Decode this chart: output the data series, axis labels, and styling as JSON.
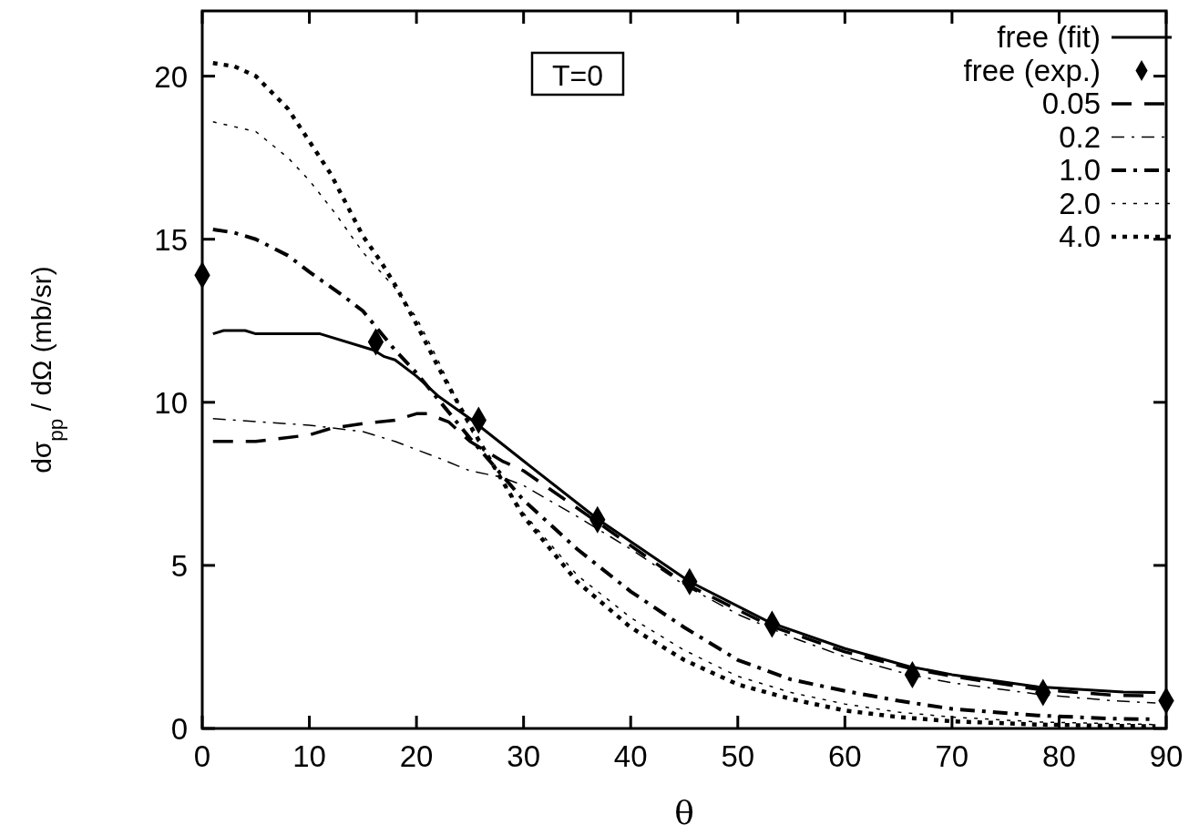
{
  "chart_data": {
    "type": "line",
    "xlabel": "θ",
    "ylabel": "dσ$_{pp}$ / dΩ (mb/sr)",
    "annotations": [
      "T=0"
    ],
    "xlim": [
      0,
      90
    ],
    "ylim": [
      0,
      22
    ],
    "xticks": [
      0,
      10,
      20,
      30,
      40,
      50,
      60,
      70,
      80,
      90
    ],
    "yticks": [
      0,
      5,
      10,
      15,
      20
    ],
    "grid": false,
    "legend": "top right",
    "series": [
      {
        "name": "free (fit)",
        "color": "#000000",
        "line_style": "solid",
        "x": [
          1,
          2,
          4,
          5,
          11,
          16,
          17,
          18,
          20,
          22,
          25,
          30,
          37,
          45.5,
          53,
          60,
          66,
          70,
          78,
          86,
          89
        ],
        "values": [
          12.1,
          12.2,
          12.2,
          12.1,
          12.1,
          11.6,
          11.4,
          11.3,
          10.8,
          10.2,
          9.5,
          8.2,
          6.4,
          4.5,
          3.25,
          2.45,
          1.9,
          1.65,
          1.28,
          1.12,
          1.1
        ]
      },
      {
        "name": "free (exp.)",
        "type": "scatter",
        "marker": "diamond",
        "color": "#000000",
        "x": [
          0,
          16.2,
          25.8,
          36.9,
          45.5,
          53.2,
          66.3,
          78.5,
          90
        ],
        "values": [
          13.9,
          11.85,
          9.45,
          6.4,
          4.5,
          3.2,
          1.65,
          1.1,
          0.85
        ]
      },
      {
        "name": "0.05",
        "color": "#000000",
        "line_style": "dashed",
        "x": [
          1,
          5,
          10,
          12,
          15,
          18,
          20,
          21,
          23,
          25,
          28,
          30,
          37,
          45,
          53,
          60,
          66,
          70,
          78,
          85,
          89
        ],
        "values": [
          8.8,
          8.8,
          9.0,
          9.2,
          9.35,
          9.45,
          9.65,
          9.65,
          9.4,
          8.8,
          8.2,
          7.9,
          6.3,
          4.45,
          3.15,
          2.35,
          1.85,
          1.6,
          1.2,
          1.02,
          1.0
        ]
      },
      {
        "name": "0.2",
        "color": "#000000",
        "line_style": "dashdot",
        "x": [
          1,
          10,
          15,
          18,
          22,
          25,
          28,
          30,
          35,
          40,
          45,
          50,
          55,
          60,
          66,
          70,
          78,
          85,
          89
        ],
        "values": [
          9.5,
          9.3,
          9.1,
          8.8,
          8.3,
          7.9,
          7.7,
          7.45,
          6.5,
          5.5,
          4.4,
          3.5,
          2.8,
          2.2,
          1.65,
          1.4,
          1.05,
          0.85,
          0.78
        ]
      },
      {
        "name": "1.0",
        "color": "#000000",
        "line_style": "dashdot",
        "x": [
          1,
          3,
          5,
          8,
          10,
          13,
          15,
          16,
          18,
          20,
          22,
          25,
          30,
          35,
          40,
          45,
          50,
          55,
          60,
          65,
          70,
          78,
          85,
          89
        ],
        "values": [
          15.3,
          15.2,
          15.0,
          14.5,
          14.0,
          13.3,
          12.8,
          12.4,
          11.6,
          10.9,
          10.1,
          8.9,
          7.0,
          5.5,
          4.2,
          3.1,
          2.1,
          1.5,
          1.15,
          0.85,
          0.6,
          0.4,
          0.3,
          0.28
        ]
      },
      {
        "name": "2.0",
        "color": "#000000",
        "line_style": "dotted",
        "x": [
          1,
          5,
          8,
          10,
          12.4,
          15,
          18,
          20,
          22,
          25,
          28,
          30,
          35,
          40,
          45,
          50,
          55,
          60,
          65,
          70,
          78,
          85,
          89
        ],
        "values": [
          18.6,
          18.3,
          17.5,
          16.8,
          15.8,
          14.6,
          13.5,
          12.6,
          11.3,
          9.2,
          7.6,
          6.6,
          4.7,
          3.4,
          2.4,
          1.6,
          1.1,
          0.75,
          0.5,
          0.35,
          0.2,
          0.15,
          0.12
        ]
      },
      {
        "name": "4.0",
        "color": "#000000",
        "line_style": "dotted",
        "x": [
          1,
          3,
          5,
          8,
          10,
          12,
          15,
          16.7,
          18,
          20,
          22,
          25,
          28,
          30,
          35,
          40,
          45,
          50,
          55,
          60,
          65,
          70,
          78,
          85,
          89
        ],
        "values": [
          20.4,
          20.3,
          20.0,
          19.0,
          18.0,
          17.0,
          15.1,
          14.3,
          13.6,
          12.4,
          11.1,
          9.3,
          7.6,
          6.5,
          4.5,
          3.1,
          2.1,
          1.35,
          0.9,
          0.55,
          0.35,
          0.22,
          0.12,
          0.08,
          0.07
        ]
      }
    ]
  }
}
